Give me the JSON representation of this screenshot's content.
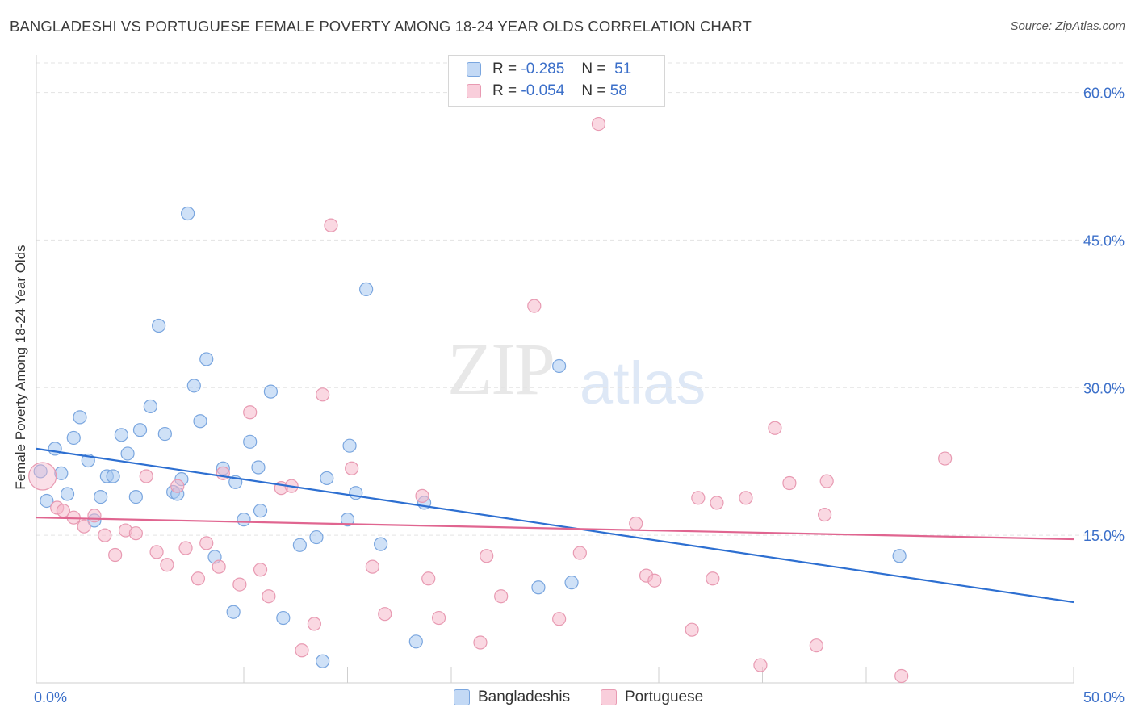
{
  "title": "BANGLADESHI VS PORTUGUESE FEMALE POVERTY AMONG 18-24 YEAR OLDS CORRELATION CHART",
  "source": "Source: ZipAtlas.com",
  "watermark": {
    "zip": "ZIP",
    "atlas": "atlas"
  },
  "legend_top": [
    {
      "r_label": "R =",
      "r_value": "-0.285",
      "n_label": "N =",
      "n_value": "51",
      "color": "#a8c8f0"
    },
    {
      "r_label": "R =",
      "r_value": "-0.054",
      "n_label": "N =",
      "n_value": "58",
      "color": "#f5b8cb"
    }
  ],
  "chart_data": {
    "type": "scatter",
    "title": "BANGLADESHI VS PORTUGUESE FEMALE POVERTY AMONG 18-24 YEAR OLDS CORRELATION CHART",
    "xlabel": "",
    "ylabel": "Female Poverty Among 18-24 Year Olds",
    "xlim": [
      0,
      50
    ],
    "ylim": [
      0,
      63
    ],
    "x_tick_labels": [
      "0.0%",
      "50.0%"
    ],
    "y_ticks": [
      15,
      30,
      45,
      60
    ],
    "y_tick_labels": [
      "15.0%",
      "30.0%",
      "45.0%",
      "60.0%"
    ],
    "grid": true,
    "legend_placement": "bottom",
    "series": [
      {
        "name": "Bangladeshis",
        "color": "#a8c8f0",
        "stroke": "#7aa6df",
        "line_color": "#2d6fd1",
        "trend": {
          "x": [
            0,
            50
          ],
          "y": [
            23.8,
            8.2
          ]
        },
        "points": [
          [
            0.2,
            21.5
          ],
          [
            0.5,
            18.5
          ],
          [
            0.9,
            23.8
          ],
          [
            1.2,
            21.3
          ],
          [
            1.5,
            19.2
          ],
          [
            1.8,
            24.9
          ],
          [
            2.1,
            27.0
          ],
          [
            2.5,
            22.6
          ],
          [
            2.8,
            16.5
          ],
          [
            3.1,
            18.9
          ],
          [
            3.4,
            21.0
          ],
          [
            3.7,
            21.0
          ],
          [
            4.1,
            25.2
          ],
          [
            4.4,
            23.3
          ],
          [
            4.8,
            18.9
          ],
          [
            5.0,
            25.7
          ],
          [
            5.5,
            28.1
          ],
          [
            5.9,
            36.3
          ],
          [
            6.2,
            25.3
          ],
          [
            6.6,
            19.4
          ],
          [
            6.8,
            19.2
          ],
          [
            7.0,
            20.7
          ],
          [
            7.3,
            47.7
          ],
          [
            7.6,
            30.2
          ],
          [
            7.9,
            26.6
          ],
          [
            8.2,
            32.9
          ],
          [
            8.6,
            12.8
          ],
          [
            9.0,
            21.8
          ],
          [
            9.5,
            7.2
          ],
          [
            9.6,
            20.4
          ],
          [
            10.0,
            16.6
          ],
          [
            10.3,
            24.5
          ],
          [
            10.7,
            21.9
          ],
          [
            10.8,
            17.5
          ],
          [
            11.3,
            29.6
          ],
          [
            11.9,
            6.6
          ],
          [
            12.7,
            14.0
          ],
          [
            13.5,
            14.8
          ],
          [
            13.8,
            2.2
          ],
          [
            14.0,
            20.8
          ],
          [
            15.0,
            16.6
          ],
          [
            15.1,
            24.1
          ],
          [
            15.4,
            19.3
          ],
          [
            15.9,
            40.0
          ],
          [
            16.6,
            14.1
          ],
          [
            18.3,
            4.2
          ],
          [
            18.7,
            18.3
          ],
          [
            24.2,
            9.7
          ],
          [
            25.2,
            32.2
          ],
          [
            25.8,
            10.2
          ],
          [
            41.6,
            12.9
          ]
        ]
      },
      {
        "name": "Portuguese",
        "color": "#f5b8cb",
        "stroke": "#e89ab2",
        "line_color": "#e06590",
        "trend": {
          "x": [
            0,
            50
          ],
          "y": [
            16.8,
            14.6
          ]
        },
        "points": [
          [
            0.3,
            21.0
          ],
          [
            1.0,
            17.8
          ],
          [
            1.3,
            17.5
          ],
          [
            1.8,
            16.8
          ],
          [
            2.3,
            15.9
          ],
          [
            2.8,
            17.0
          ],
          [
            3.3,
            15.0
          ],
          [
            3.8,
            13.0
          ],
          [
            4.3,
            15.5
          ],
          [
            4.8,
            15.2
          ],
          [
            5.3,
            21.0
          ],
          [
            5.8,
            13.3
          ],
          [
            6.3,
            12.0
          ],
          [
            6.8,
            20.0
          ],
          [
            7.2,
            13.7
          ],
          [
            7.8,
            10.6
          ],
          [
            8.2,
            14.2
          ],
          [
            8.8,
            11.8
          ],
          [
            9.0,
            21.3
          ],
          [
            9.8,
            10.0
          ],
          [
            10.3,
            27.5
          ],
          [
            10.8,
            11.5
          ],
          [
            11.2,
            8.8
          ],
          [
            11.8,
            19.8
          ],
          [
            12.3,
            20.0
          ],
          [
            12.8,
            3.3
          ],
          [
            13.4,
            6.0
          ],
          [
            13.8,
            29.3
          ],
          [
            14.2,
            46.5
          ],
          [
            15.2,
            21.8
          ],
          [
            16.2,
            11.8
          ],
          [
            16.8,
            7.0
          ],
          [
            18.6,
            19.0
          ],
          [
            18.9,
            10.6
          ],
          [
            19.4,
            6.6
          ],
          [
            21.4,
            4.1
          ],
          [
            21.7,
            12.9
          ],
          [
            22.4,
            8.8
          ],
          [
            24.0,
            38.3
          ],
          [
            25.2,
            6.5
          ],
          [
            26.2,
            13.2
          ],
          [
            27.1,
            56.8
          ],
          [
            28.9,
            16.2
          ],
          [
            29.4,
            10.9
          ],
          [
            29.8,
            10.4
          ],
          [
            31.6,
            5.4
          ],
          [
            31.9,
            18.8
          ],
          [
            32.6,
            10.6
          ],
          [
            32.8,
            18.3
          ],
          [
            34.2,
            18.8
          ],
          [
            34.9,
            1.8
          ],
          [
            35.6,
            25.9
          ],
          [
            36.3,
            20.3
          ],
          [
            37.6,
            3.8
          ],
          [
            38.0,
            17.1
          ],
          [
            38.1,
            20.5
          ],
          [
            41.7,
            0.7
          ],
          [
            43.8,
            22.8
          ]
        ]
      }
    ]
  }
}
